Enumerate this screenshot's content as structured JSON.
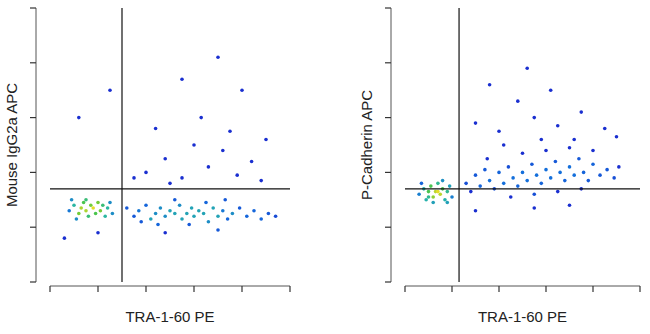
{
  "chart_data": [
    {
      "type": "scatter",
      "x_label": "TRA-1-60 PE",
      "y_label": "Mouse IgG2a APC",
      "xlim": [
        0,
        100
      ],
      "ylim": [
        0,
        100
      ],
      "xticks": [
        0,
        20,
        40,
        60,
        80,
        100
      ],
      "yticks": [
        0,
        20,
        40,
        60,
        80,
        100
      ],
      "tick_labels": false,
      "grid": false,
      "gates": {
        "x": 30,
        "y": 34
      },
      "series": [
        {
          "color": "#1a2fd0",
          "marker": "dot",
          "x": [
            8,
            10,
            12,
            13,
            14,
            15,
            16,
            17,
            18,
            19,
            20,
            21,
            22,
            23,
            24,
            26,
            11,
            15,
            9,
            25,
            32,
            35,
            37,
            40,
            42,
            44,
            46,
            48,
            50,
            52,
            54,
            55,
            57,
            59,
            60,
            62,
            64,
            66,
            68,
            70,
            72,
            74,
            76,
            79,
            82,
            85,
            88,
            91,
            94,
            45,
            58,
            65,
            73,
            52,
            38,
            6,
            20,
            48,
            70,
            40,
            48,
            55,
            60,
            66,
            72,
            78,
            84,
            63,
            75,
            50,
            88,
            35,
            25,
            70,
            55,
            12,
            80,
            90,
            44
          ],
          "values": [
            26,
            28,
            25,
            27,
            29,
            26,
            24,
            28,
            27,
            25,
            29,
            26,
            28,
            24,
            27,
            25,
            23,
            30,
            30,
            29,
            27,
            24,
            26,
            28,
            23,
            25,
            27,
            24,
            26,
            25,
            28,
            23,
            25,
            27,
            24,
            26,
            25,
            22,
            27,
            24,
            26,
            23,
            25,
            27,
            24,
            26,
            23,
            25,
            24,
            21,
            21,
            29,
            30,
            30,
            22,
            16,
            18,
            18,
            19,
            40,
            45,
            38,
            50,
            42,
            48,
            39,
            44,
            60,
            55,
            36,
            37,
            38,
            70,
            82,
            74,
            60,
            70,
            52,
            56
          ]
        }
      ]
    },
    {
      "type": "scatter",
      "x_label": "TRA-1-60 PE",
      "y_label": "P-Cadherin APC",
      "xlim": [
        0,
        100
      ],
      "ylim": [
        0,
        100
      ],
      "xticks": [
        0,
        20,
        40,
        60,
        80,
        100
      ],
      "yticks": [
        0,
        20,
        40,
        60,
        80,
        100
      ],
      "tick_labels": false,
      "grid": false,
      "gates": {
        "x": 23,
        "y": 34
      },
      "series": [
        {
          "color": "#1a2fd0",
          "marker": "dot",
          "x": [
            6,
            8,
            9,
            10,
            11,
            12,
            13,
            14,
            15,
            16,
            17,
            18,
            19,
            20,
            7,
            12,
            16,
            10,
            14,
            18,
            26,
            28,
            30,
            32,
            34,
            36,
            38,
            40,
            42,
            44,
            46,
            48,
            50,
            52,
            54,
            56,
            58,
            60,
            62,
            64,
            66,
            68,
            70,
            72,
            74,
            76,
            78,
            80,
            83,
            86,
            89,
            91,
            45,
            55,
            65,
            75,
            35,
            50,
            60,
            70,
            80,
            30,
            40,
            55,
            65,
            75,
            85,
            48,
            62,
            72,
            90,
            42,
            58,
            36,
            52,
            30,
            55,
            70
          ],
          "values": [
            32,
            34,
            30,
            33,
            35,
            31,
            33,
            36,
            32,
            34,
            30,
            33,
            35,
            31,
            36,
            29,
            37,
            31,
            33,
            29,
            36,
            33,
            39,
            35,
            41,
            37,
            34,
            40,
            36,
            42,
            38,
            35,
            40,
            37,
            43,
            39,
            36,
            41,
            38,
            44,
            40,
            37,
            42,
            39,
            45,
            40,
            37,
            43,
            39,
            41,
            38,
            42,
            31,
            32,
            33,
            34,
            45,
            47,
            48,
            49,
            48,
            58,
            55,
            60,
            57,
            62,
            56,
            66,
            70,
            52,
            53,
            50,
            52,
            72,
            78,
            26,
            27,
            28
          ]
        }
      ]
    }
  ]
}
